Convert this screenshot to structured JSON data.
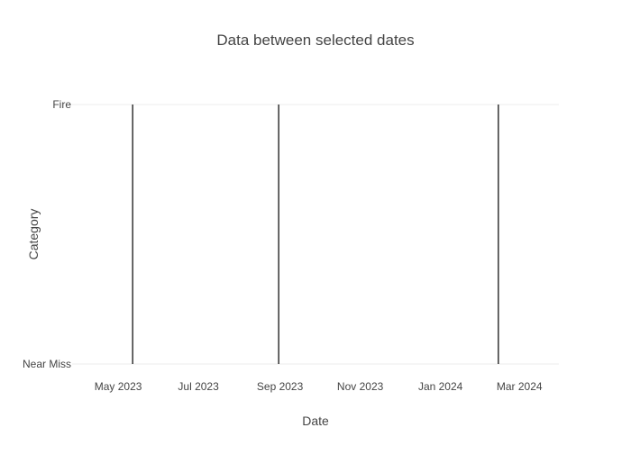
{
  "chart_data": {
    "type": "line",
    "title": "Data between selected dates",
    "xlabel": "Date",
    "ylabel": "Category",
    "x_axis": {
      "type": "date",
      "range": [
        "2023-03-27",
        "2024-03-31"
      ],
      "ticks": [
        {
          "date": "2023-05-01",
          "label": "May 2023"
        },
        {
          "date": "2023-07-01",
          "label": "Jul 2023"
        },
        {
          "date": "2023-09-01",
          "label": "Sep 2023"
        },
        {
          "date": "2023-11-01",
          "label": "Nov 2023"
        },
        {
          "date": "2024-01-01",
          "label": "Jan 2024"
        },
        {
          "date": "2024-03-01",
          "label": "Mar 2024"
        }
      ]
    },
    "y_axis": {
      "type": "category",
      "categories": [
        "Near Miss",
        "Fire"
      ]
    },
    "grid": true,
    "legend": "none",
    "colors": {
      "line": "#000000",
      "grid": "#eeeeee",
      "text": "#444444"
    },
    "series": [
      {
        "x": [
          "2023-05-12",
          "2023-05-12"
        ],
        "y": [
          "Near Miss",
          "Fire"
        ]
      },
      {
        "x": [
          "2023-08-31",
          "2023-08-31"
        ],
        "y": [
          "Near Miss",
          "Fire"
        ]
      },
      {
        "x": [
          "2024-02-14",
          "2024-02-14"
        ],
        "y": [
          "Near Miss",
          "Fire"
        ]
      }
    ]
  }
}
